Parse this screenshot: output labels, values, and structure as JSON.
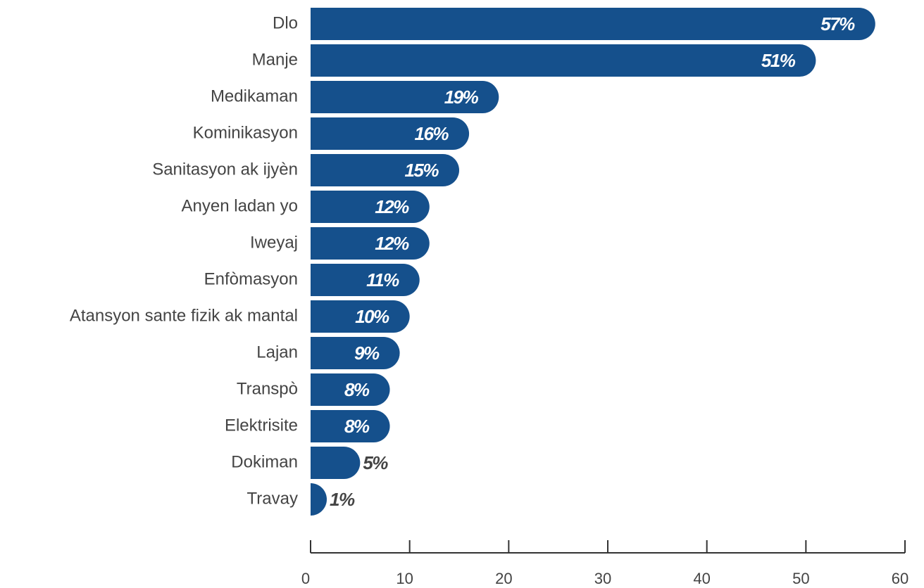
{
  "chart_data": {
    "type": "barh",
    "categories": [
      "Dlo",
      "Manje",
      "Medikaman",
      "Kominikasyon",
      "Sanitasyon ak ijyèn",
      "Anyen ladan yo",
      "Iweyaj",
      "Enfòmasyon",
      "Atansyon sante fizik ak mantal",
      "Lajan",
      "Transpò",
      "Elektrisite",
      "Dokiman",
      "Travay"
    ],
    "values": [
      57,
      51,
      19,
      16,
      15,
      12,
      12,
      11,
      10,
      9,
      8,
      8,
      5,
      1
    ],
    "value_labels": [
      "57%",
      "51%",
      "19%",
      "16%",
      "15%",
      "12%",
      "12%",
      "11%",
      "10%",
      "9%",
      "8%",
      "8%",
      "5%",
      "1%"
    ],
    "color": "#15508c",
    "xlim": [
      0,
      60
    ],
    "xticks": [
      0,
      10,
      20,
      30,
      40,
      50,
      60
    ]
  }
}
